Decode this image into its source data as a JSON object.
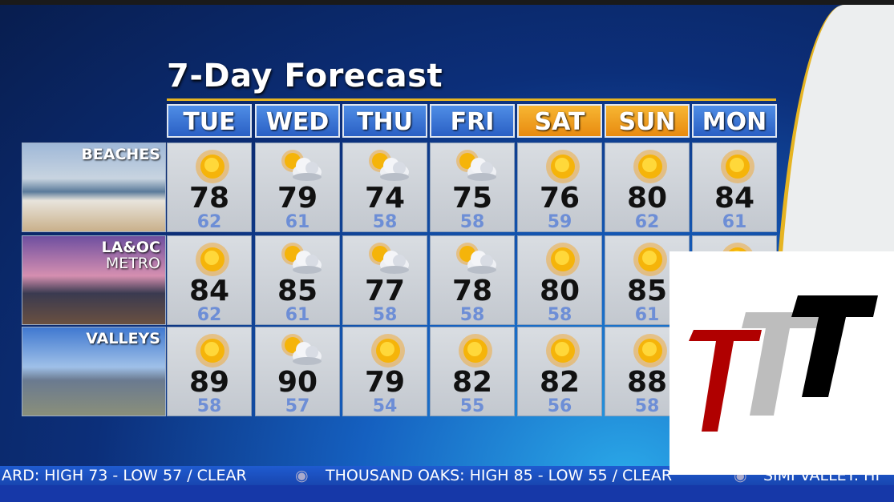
{
  "title": "7-Day Forecast",
  "days": [
    {
      "label": "TUE",
      "weekend": false
    },
    {
      "label": "WED",
      "weekend": false
    },
    {
      "label": "THU",
      "weekend": false
    },
    {
      "label": "FRI",
      "weekend": false
    },
    {
      "label": "SAT",
      "weekend": true
    },
    {
      "label": "SUN",
      "weekend": true
    },
    {
      "label": "MON",
      "weekend": false
    }
  ],
  "regions": [
    {
      "label": "BEACHES",
      "label2": "",
      "forecast": [
        {
          "icon": "sun",
          "hi": "78",
          "lo": "62"
        },
        {
          "icon": "partly-cloudy",
          "hi": "79",
          "lo": "61"
        },
        {
          "icon": "partly-cloudy",
          "hi": "74",
          "lo": "58"
        },
        {
          "icon": "partly-cloudy",
          "hi": "75",
          "lo": "58"
        },
        {
          "icon": "sun",
          "hi": "76",
          "lo": "59"
        },
        {
          "icon": "sun",
          "hi": "80",
          "lo": "62"
        },
        {
          "icon": "sun",
          "hi": "84",
          "lo": "61"
        }
      ]
    },
    {
      "label": "LA&OC",
      "label2": "METRO",
      "forecast": [
        {
          "icon": "sun",
          "hi": "84",
          "lo": "62"
        },
        {
          "icon": "partly-cloudy",
          "hi": "85",
          "lo": "61"
        },
        {
          "icon": "partly-cloudy",
          "hi": "77",
          "lo": "58"
        },
        {
          "icon": "partly-cloudy",
          "hi": "78",
          "lo": "58"
        },
        {
          "icon": "sun",
          "hi": "80",
          "lo": "58"
        },
        {
          "icon": "sun",
          "hi": "85",
          "lo": "61"
        },
        {
          "icon": "sun",
          "hi": "",
          "lo": ""
        }
      ]
    },
    {
      "label": "VALLEYS",
      "label2": "",
      "forecast": [
        {
          "icon": "sun",
          "hi": "89",
          "lo": "58"
        },
        {
          "icon": "partly-cloudy",
          "hi": "90",
          "lo": "57"
        },
        {
          "icon": "sun",
          "hi": "79",
          "lo": "54"
        },
        {
          "icon": "sun",
          "hi": "82",
          "lo": "55"
        },
        {
          "icon": "sun",
          "hi": "82",
          "lo": "56"
        },
        {
          "icon": "sun",
          "hi": "88",
          "lo": "58"
        },
        {
          "icon": "sun",
          "hi": "",
          "lo": ""
        }
      ]
    }
  ],
  "ticker": [
    "ARD: HIGH 73 - LOW 57 / CLEAR",
    "THOUSAND OAKS: HIGH 85 - LOW 55 / CLEAR",
    "SIMI VALLEY: HI"
  ],
  "colors": {
    "weekday": "#3a75d8",
    "weekend": "#f0a020",
    "accent": "#e6b422",
    "logo_red": "#b00000",
    "logo_gray": "#bdbdbd",
    "logo_black": "#000000"
  }
}
